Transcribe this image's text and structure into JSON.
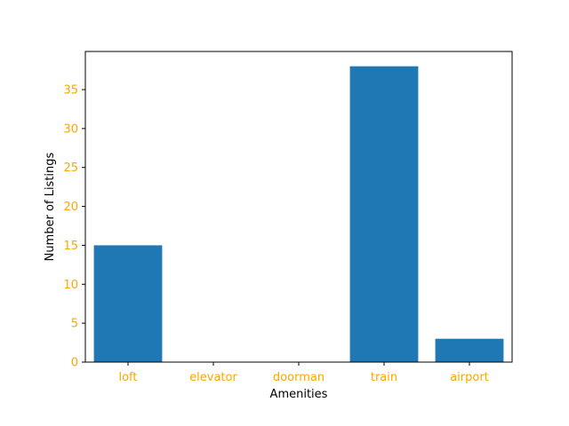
{
  "chart_data": {
    "type": "bar",
    "title": "",
    "xlabel": "Amenities",
    "ylabel": "Number of Listings",
    "categories": [
      "loft",
      "elevator",
      "doorman",
      "train",
      "airport"
    ],
    "values": [
      15,
      0,
      0,
      38,
      3
    ],
    "ylim": [
      0,
      39.9
    ],
    "yticks": [
      0,
      5,
      10,
      15,
      20,
      25,
      30,
      35
    ],
    "bar_color": "#1f77b4",
    "tick_label_color": "#ffa500",
    "grid": false,
    "legend": "none"
  }
}
